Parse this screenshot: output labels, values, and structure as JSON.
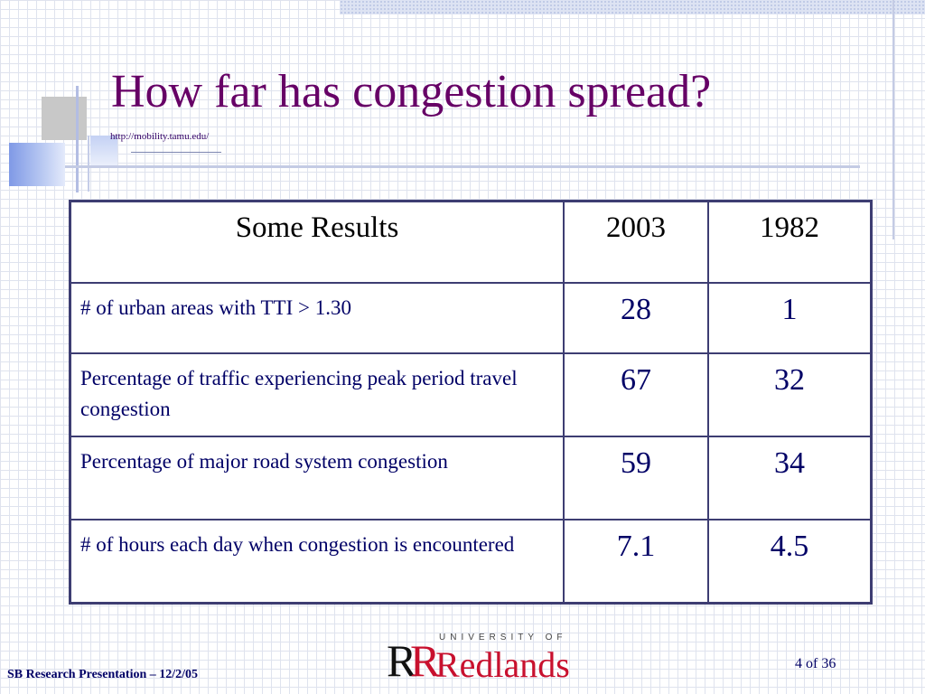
{
  "slide": {
    "title": "How far has congestion spread?",
    "source_url": "http://mobility.tamu.edu/"
  },
  "table": {
    "headers": [
      "Some Results",
      "2003",
      "1982"
    ],
    "rows": [
      {
        "label": "# of urban areas with  TTI > 1.30",
        "v2003": "28",
        "v1982": "1"
      },
      {
        "label": "Percentage of traffic experiencing peak period travel congestion",
        "v2003": "67",
        "v1982": "32"
      },
      {
        "label": "Percentage of major road system congestion",
        "v2003": "59",
        "v1982": "34"
      },
      {
        "label": "# of hours each day when congestion is encountered",
        "v2003": "7.1",
        "v1982": "4.5"
      }
    ]
  },
  "logo": {
    "mark": "R",
    "university_line": "UNIVERSITY OF",
    "name": "Redlands"
  },
  "footer": {
    "presentation": "SB Research Presentation – 12/2/05",
    "page": "4 of 36"
  },
  "colors": {
    "title": "#660066",
    "text": "#000066",
    "table_border": "#3d3d72",
    "logo_red": "#c8102e"
  }
}
